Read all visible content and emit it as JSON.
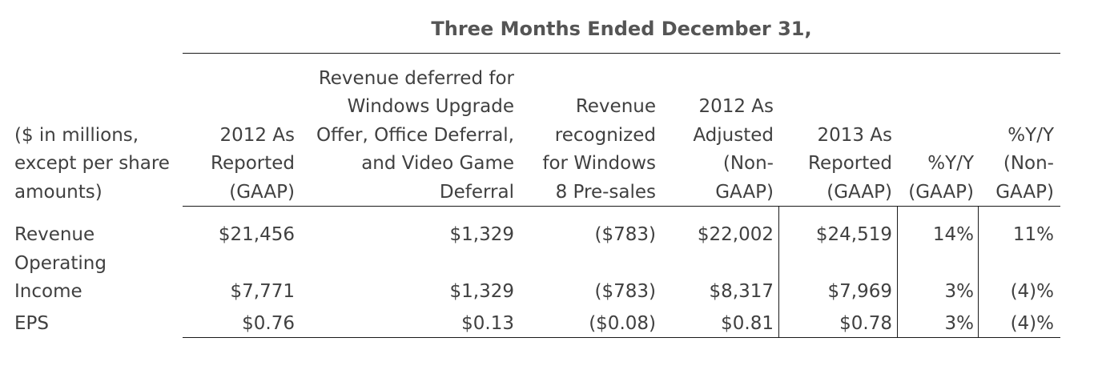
{
  "title": "Three Months Ended December 31,",
  "columns": [
    {
      "id": "label",
      "lines": [
        "($ in millions,",
        "except per share",
        "amounts)"
      ]
    },
    {
      "id": "reported_2012",
      "lines": [
        "2012 As",
        "Reported",
        "(GAAP)"
      ]
    },
    {
      "id": "deferred",
      "lines": [
        "Revenue deferred for",
        "Windows Upgrade",
        "Offer, Office Deferral,",
        "and Video Game",
        "Deferral"
      ]
    },
    {
      "id": "presales",
      "lines": [
        "Revenue",
        "recognized",
        "for Windows",
        "8 Pre-sales"
      ]
    },
    {
      "id": "adjusted_2012",
      "lines": [
        "2012 As",
        "Adjusted",
        "(Non-",
        "GAAP)"
      ]
    },
    {
      "id": "reported_2013",
      "lines": [
        "2013 As",
        "Reported",
        "(GAAP)"
      ]
    },
    {
      "id": "yy_gaap",
      "lines": [
        "%Y/Y",
        "(GAAP)"
      ]
    },
    {
      "id": "yy_nongaap",
      "lines": [
        "%Y/Y",
        "(Non-",
        "GAAP)"
      ]
    }
  ],
  "rows": [
    {
      "label": [
        "Revenue"
      ],
      "values": [
        "$21,456",
        "$1,329",
        "($783)",
        "$22,002",
        "$24,519",
        "14%",
        "11%"
      ]
    },
    {
      "label": [
        "Operating",
        "Income"
      ],
      "values": [
        "$7,771",
        "$1,329",
        "($783)",
        "$8,317",
        "$7,969",
        "3%",
        "(4)%"
      ]
    },
    {
      "label": [
        "EPS"
      ],
      "values": [
        "$0.76",
        "$0.13",
        "($0.08)",
        "$0.81",
        "$0.78",
        "3%",
        "(4)%"
      ]
    }
  ]
}
